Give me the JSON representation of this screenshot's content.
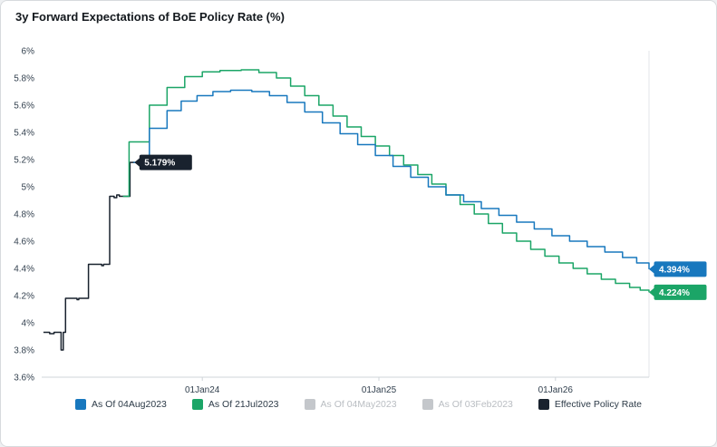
{
  "title": "3y Forward Expectations of BoE Policy Rate (%)",
  "colors": {
    "blue": "#1878be",
    "green": "#1ba567",
    "dark": "#19222e",
    "grey": "#c4c7cb",
    "axis_text": "#33414f"
  },
  "legend": {
    "items": [
      {
        "label": "As Of 04Aug2023",
        "color": "#1878be",
        "active": true
      },
      {
        "label": "As Of 21Jul2023",
        "color": "#1ba567",
        "active": true
      },
      {
        "label": "As Of 04May2023",
        "color": "#c4c7cb",
        "active": false
      },
      {
        "label": "As Of 03Feb2023",
        "color": "#c4c7cb",
        "active": false
      },
      {
        "label": "Effective Policy Rate",
        "color": "#19222e",
        "active": true
      }
    ]
  },
  "chart_data": {
    "type": "line",
    "step": true,
    "title": "3y Forward Expectations of BoE Policy Rate (%)",
    "xlabel": "",
    "ylabel": "",
    "x_units": "years from 01Jan2023",
    "xlim": [
      0.09,
      3.53
    ],
    "ylim": [
      3.6,
      6.0
    ],
    "grid": false,
    "legend_position": "bottom",
    "yticks": [
      3.6,
      3.8,
      4.0,
      4.2,
      4.4,
      4.6,
      4.8,
      5.0,
      5.2,
      5.4,
      5.6,
      5.8,
      6.0
    ],
    "ytick_labels": [
      "3.6%",
      "3.8%",
      "4%",
      "4.2%",
      "4.4%",
      "4.6%",
      "4.8%",
      "5%",
      "5.2%",
      "5.4%",
      "5.6%",
      "5.8%",
      "6%"
    ],
    "xticks": [
      1,
      2,
      3
    ],
    "xtick_labels": [
      "01Jan24",
      "01Jan25",
      "01Jan26"
    ],
    "series": [
      {
        "name": "Effective Policy Rate",
        "color": "#19222e",
        "points": [
          [
            0.1,
            3.93
          ],
          [
            0.135,
            3.92
          ],
          [
            0.16,
            3.93
          ],
          [
            0.195,
            3.93
          ],
          [
            0.2,
            3.8
          ],
          [
            0.207,
            3.8
          ],
          [
            0.212,
            3.93
          ],
          [
            0.225,
            4.18
          ],
          [
            0.29,
            4.17
          ],
          [
            0.3,
            4.18
          ],
          [
            0.355,
            4.43
          ],
          [
            0.43,
            4.42
          ],
          [
            0.44,
            4.43
          ],
          [
            0.475,
            4.93
          ],
          [
            0.5,
            4.92
          ],
          [
            0.515,
            4.94
          ],
          [
            0.53,
            4.93
          ],
          [
            0.59,
            5.179
          ],
          [
            0.615,
            5.179
          ]
        ]
      },
      {
        "name": "As Of 21Jul2023",
        "color": "#1ba567",
        "points": [
          [
            0.55,
            4.93
          ],
          [
            0.585,
            5.33
          ],
          [
            0.7,
            5.6
          ],
          [
            0.8,
            5.73
          ],
          [
            0.9,
            5.81
          ],
          [
            1.0,
            5.845
          ],
          [
            1.1,
            5.855
          ],
          [
            1.22,
            5.86
          ],
          [
            1.32,
            5.84
          ],
          [
            1.42,
            5.8
          ],
          [
            1.5,
            5.74
          ],
          [
            1.58,
            5.67
          ],
          [
            1.66,
            5.6
          ],
          [
            1.74,
            5.52
          ],
          [
            1.82,
            5.44
          ],
          [
            1.9,
            5.37
          ],
          [
            1.98,
            5.3
          ],
          [
            2.06,
            5.23
          ],
          [
            2.14,
            5.16
          ],
          [
            2.22,
            5.09
          ],
          [
            2.3,
            5.02
          ],
          [
            2.38,
            4.94
          ],
          [
            2.46,
            4.87
          ],
          [
            2.54,
            4.8
          ],
          [
            2.62,
            4.73
          ],
          [
            2.7,
            4.66
          ],
          [
            2.78,
            4.6
          ],
          [
            2.86,
            4.54
          ],
          [
            2.94,
            4.49
          ],
          [
            3.02,
            4.44
          ],
          [
            3.1,
            4.4
          ],
          [
            3.18,
            4.36
          ],
          [
            3.26,
            4.32
          ],
          [
            3.34,
            4.29
          ],
          [
            3.42,
            4.26
          ],
          [
            3.48,
            4.24
          ],
          [
            3.53,
            4.224
          ]
        ]
      },
      {
        "name": "As Of 04Aug2023",
        "color": "#1878be",
        "points": [
          [
            0.61,
            5.179
          ],
          [
            0.7,
            5.43
          ],
          [
            0.8,
            5.56
          ],
          [
            0.88,
            5.63
          ],
          [
            0.97,
            5.67
          ],
          [
            1.06,
            5.7
          ],
          [
            1.16,
            5.71
          ],
          [
            1.28,
            5.7
          ],
          [
            1.38,
            5.67
          ],
          [
            1.48,
            5.62
          ],
          [
            1.58,
            5.55
          ],
          [
            1.68,
            5.47
          ],
          [
            1.78,
            5.39
          ],
          [
            1.88,
            5.31
          ],
          [
            1.98,
            5.23
          ],
          [
            2.08,
            5.15
          ],
          [
            2.18,
            5.07
          ],
          [
            2.28,
            5.0
          ],
          [
            2.38,
            4.94
          ],
          [
            2.48,
            4.89
          ],
          [
            2.58,
            4.84
          ],
          [
            2.68,
            4.79
          ],
          [
            2.78,
            4.74
          ],
          [
            2.88,
            4.69
          ],
          [
            2.98,
            4.64
          ],
          [
            3.08,
            4.6
          ],
          [
            3.18,
            4.56
          ],
          [
            3.28,
            4.52
          ],
          [
            3.38,
            4.48
          ],
          [
            3.46,
            4.44
          ],
          [
            3.53,
            4.394
          ]
        ]
      }
    ],
    "badges": [
      {
        "label": "5.179%",
        "color": "#19222e",
        "t": 0.615,
        "value": 5.179,
        "arrow": "left"
      },
      {
        "label": "4.394%",
        "color": "#1878be",
        "t": 3.53,
        "value": 4.394,
        "arrow": "left"
      },
      {
        "label": "4.224%",
        "color": "#1ba567",
        "t": 3.53,
        "value": 4.224,
        "arrow": "left"
      }
    ]
  }
}
